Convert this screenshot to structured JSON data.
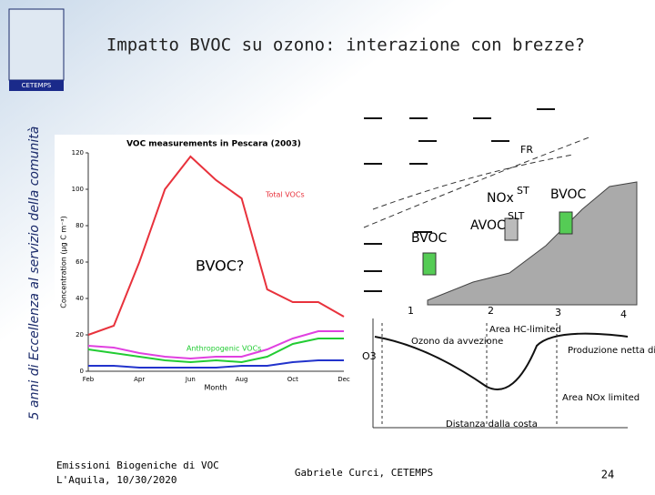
{
  "slide": {
    "title": "Impatto BVOC su ozono: interazione con brezze?",
    "side_text": "5 anni di Eccellenza al servizio della comunità",
    "logo": "CETEMPS",
    "footer_left": [
      "Emissioni Biogeniche di VOC",
      "L'Aquila, 10/30/2020"
    ],
    "footer_center": "Gabriele Curci, CETEMPS",
    "page_number": "24"
  },
  "chart_data": {
    "type": "line",
    "title": "VOC measurements in Pescara (2003)",
    "y_label": "Concentration (µg C m⁻³)",
    "x_label": "Month",
    "categories": [
      "Feb",
      null,
      "Apr",
      null,
      "Jun",
      null,
      "Aug",
      null,
      "Oct",
      null,
      "Dec"
    ],
    "series": [
      {
        "name": "Total VOCs",
        "color": "#e8323c",
        "values": [
          20,
          25,
          60,
          100,
          118,
          105,
          95,
          45,
          38,
          38,
          30
        ]
      },
      {
        "color": "#e040e0",
        "values": [
          14,
          13,
          10,
          8,
          7,
          8,
          8,
          12,
          18,
          22,
          22
        ]
      },
      {
        "name": "Anthropogenic VOCs",
        "color": "#22cc33",
        "values": [
          12,
          10,
          8,
          6,
          5,
          6,
          5,
          8,
          15,
          18,
          18
        ]
      },
      {
        "color": "#2233cc",
        "values": [
          3,
          3,
          2,
          2,
          2,
          2,
          3,
          3,
          5,
          6,
          6
        ]
      }
    ],
    "ylim": [
      0,
      120
    ],
    "yticks": [
      0,
      20,
      40,
      60,
      80,
      100,
      120
    ]
  },
  "diagram": {
    "labels": {
      "nox": "NOx",
      "bvoc_right": "BVOC",
      "avoc": "AVOC",
      "bvoc_left": "BVOC",
      "bvoc_question": "BVOC?",
      "st": "ST",
      "slt": "SLT",
      "fr": "FR",
      "o3": "O3",
      "zone1": "1",
      "zone2": "2",
      "zone3": "3",
      "zone4": "4",
      "advection": "Ozono da avvezione",
      "hc_limited": "Area HC-limited",
      "production": "Produzione netta di ozono",
      "nox_limited": "Area NOx limited",
      "distance": "Distanza dalla costa"
    }
  }
}
